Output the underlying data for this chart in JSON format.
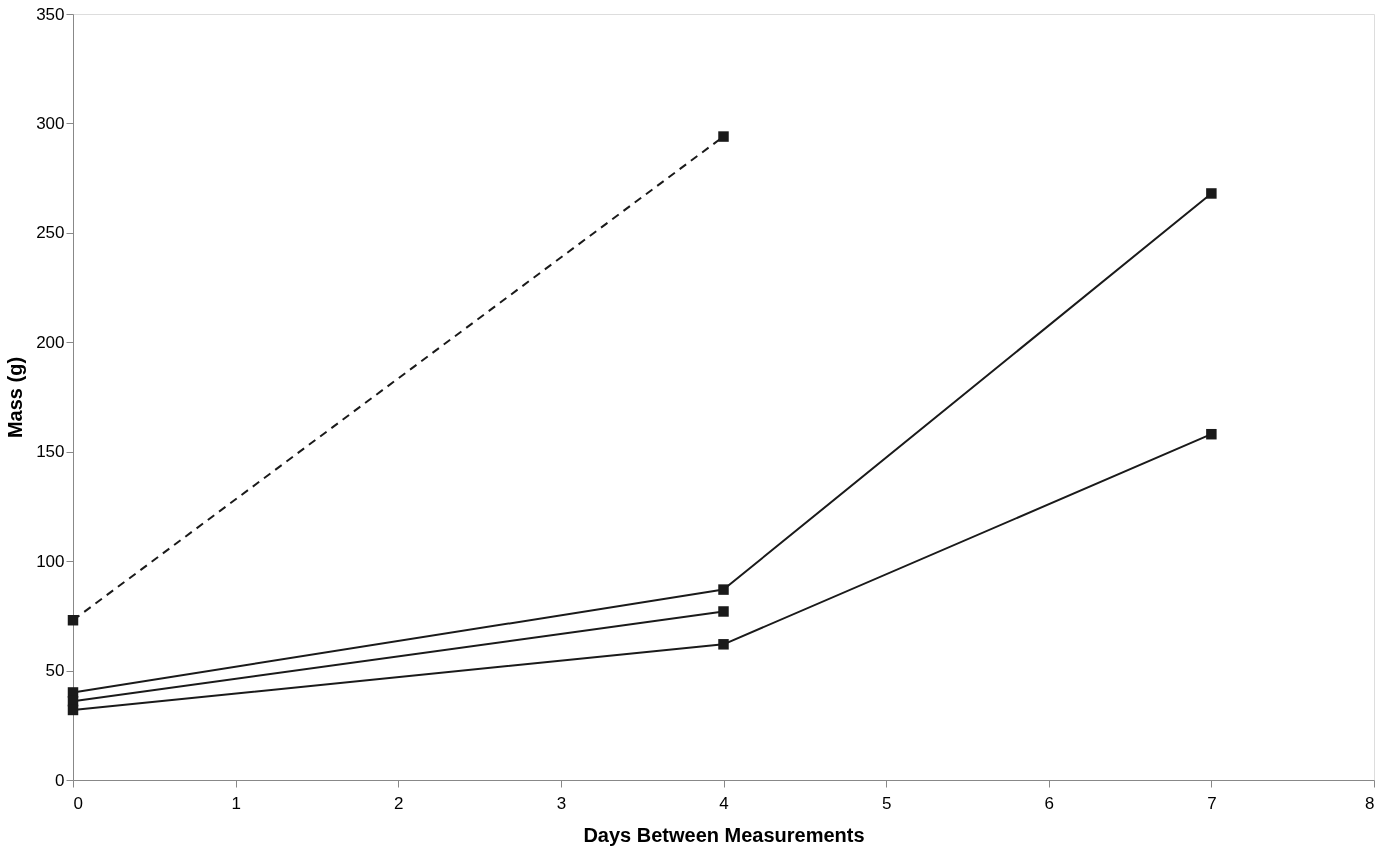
{
  "chart_data": {
    "type": "line",
    "xlabel": "Days Between Measurements",
    "ylabel": "Mass (g)",
    "xlim": [
      0,
      8
    ],
    "xticks": [
      0,
      1,
      2,
      3,
      4,
      5,
      6,
      7,
      8
    ],
    "ylim": [
      0,
      350
    ],
    "yticks": [
      0,
      50,
      100,
      150,
      200,
      250,
      300,
      350
    ],
    "grid": false,
    "marker": "square",
    "line_style": "solid",
    "series": [
      {
        "color": "#1a1a1a",
        "x": [
          0,
          4
        ],
        "values": [
          73,
          294
        ],
        "line_style": "dashed"
      },
      {
        "color": "#1a1a1a",
        "x": [
          0,
          4,
          7
        ],
        "values": [
          40,
          87,
          268
        ]
      },
      {
        "color": "#1a1a1a",
        "x": [
          0,
          4
        ],
        "values": [
          36,
          77
        ]
      },
      {
        "color": "#1a1a1a",
        "x": [
          0,
          4,
          7
        ],
        "values": [
          32,
          62,
          158
        ]
      }
    ]
  }
}
